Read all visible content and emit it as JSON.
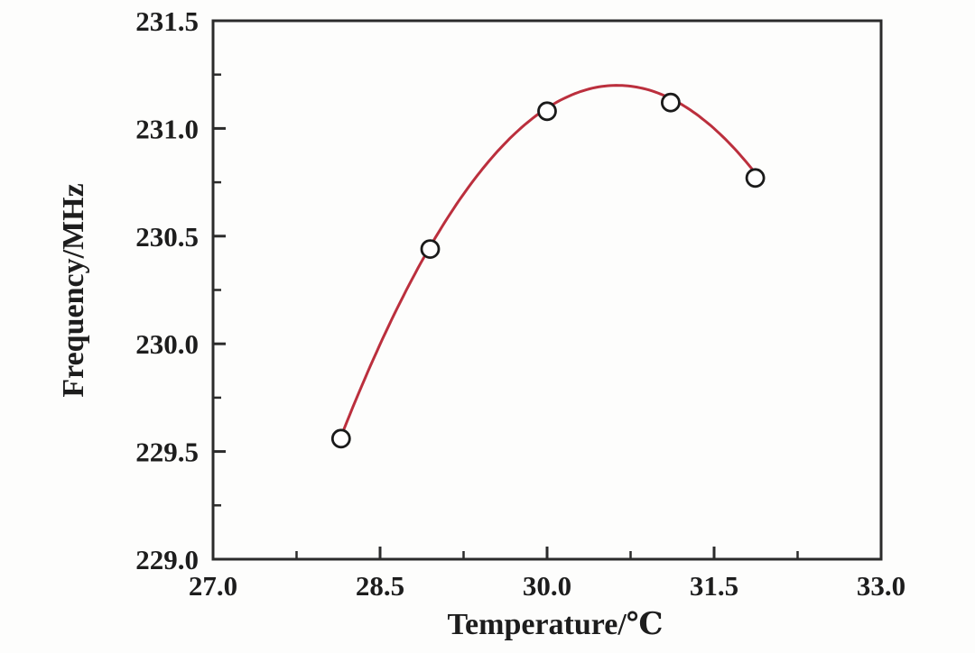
{
  "chart_data": {
    "type": "scatter",
    "title": "",
    "xlabel": "Temperature/℃",
    "ylabel": "Frequency/MHz",
    "xlim": [
      27.0,
      33.0
    ],
    "ylim": [
      229.0,
      231.5
    ],
    "x_major_ticks": [
      27.0,
      28.5,
      30.0,
      31.5,
      33.0
    ],
    "x_minor_ticks": [
      27.75,
      29.25,
      30.75,
      32.25
    ],
    "y_major_ticks": [
      229.0,
      229.5,
      230.0,
      230.5,
      231.0,
      231.5
    ],
    "y_minor_ticks": [
      229.25,
      229.75,
      230.25,
      230.75,
      231.25
    ],
    "tick_decimals": 1,
    "grid": false,
    "legend_position": "none",
    "axis_color": "#2b2b2b",
    "series": [
      {
        "name": "measured-points",
        "type": "scatter",
        "marker": "open-circle",
        "color": "#1a1a1a",
        "points": [
          [
            28.15,
            229.56
          ],
          [
            28.95,
            230.44
          ],
          [
            30.0,
            231.08
          ],
          [
            31.11,
            231.12
          ],
          [
            31.87,
            230.77
          ]
        ]
      },
      {
        "name": "polynomial-fit",
        "type": "line",
        "color": "#bb2f3d",
        "fit": {
          "form": "parabola",
          "peak_x": 30.63,
          "peak_y": 231.2,
          "a": -0.265,
          "x_start": 28.15,
          "x_end": 31.87
        }
      }
    ]
  }
}
